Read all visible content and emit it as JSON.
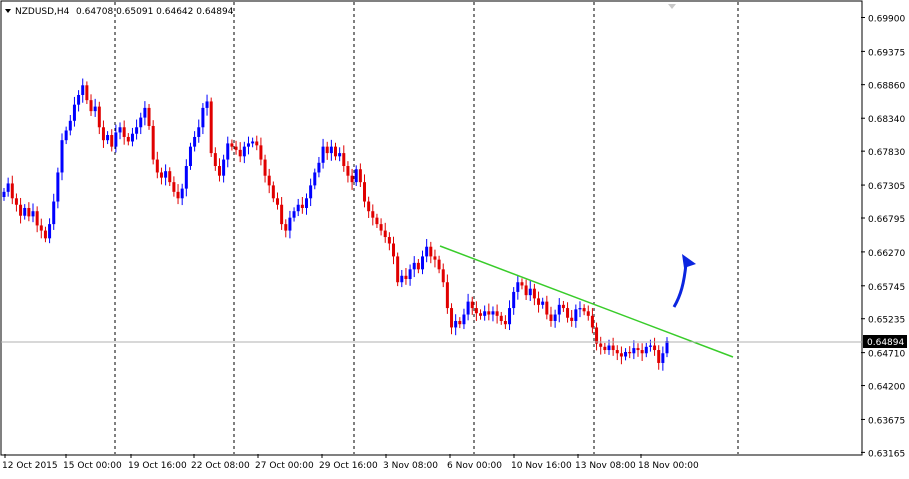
{
  "header": {
    "symbol_tf": "NZDUSD,H4",
    "ohlc": "0.64708 0.65091 0.64642 0.64894"
  },
  "colors": {
    "bull": "#0000ff",
    "bear": "#e00000",
    "trendline": "#39cc2a",
    "arrow": "#0b25e0",
    "grid": "#000000",
    "bg": "#ffffff",
    "price_box_bg": "#000000",
    "price_box_text": "#ffffff"
  },
  "chart_data": {
    "type": "candlestick",
    "title": "NZDUSD,H4",
    "ylim": [
      0.6314,
      0.7014
    ],
    "y_ticks": [
      "0.69900",
      "0.69375",
      "0.68860",
      "0.68340",
      "0.67830",
      "0.67305",
      "0.66795",
      "0.66270",
      "0.65745",
      "0.65235",
      "0.64710",
      "0.64200",
      "0.63675",
      "0.63165"
    ],
    "x_ticks": [
      "12 Oct 2015",
      "15 Oct 00:00",
      "19 Oct 16:00",
      "22 Oct 08:00",
      "27 Oct 00:00",
      "29 Oct 16:00",
      "3 Nov 08:00",
      "6 Nov 00:00",
      "10 Nov 16:00",
      "13 Nov 08:00",
      "18 Nov 00:00"
    ],
    "current_price": "0.64894",
    "grid": "vertical dotted lines at day starts",
    "closes": [
      0.672,
      0.6733,
      0.671,
      0.67,
      0.6683,
      0.6695,
      0.6682,
      0.669,
      0.6668,
      0.666,
      0.6648,
      0.667,
      0.6705,
      0.675,
      0.68,
      0.6815,
      0.683,
      0.6855,
      0.687,
      0.6885,
      0.6862,
      0.6845,
      0.6852,
      0.682,
      0.68,
      0.6808,
      0.679,
      0.6812,
      0.682,
      0.6805,
      0.6798,
      0.681,
      0.682,
      0.6835,
      0.685,
      0.6822,
      0.677,
      0.675,
      0.6742,
      0.6752,
      0.6735,
      0.672,
      0.671,
      0.6725,
      0.676,
      0.679,
      0.6805,
      0.682,
      0.685,
      0.686,
      0.678,
      0.676,
      0.6745,
      0.677,
      0.6795,
      0.679,
      0.6785,
      0.6775,
      0.679,
      0.6795,
      0.6798,
      0.6792,
      0.677,
      0.6745,
      0.673,
      0.671,
      0.67,
      0.667,
      0.666,
      0.668,
      0.669,
      0.67,
      0.6695,
      0.671,
      0.673,
      0.675,
      0.6765,
      0.679,
      0.678,
      0.679,
      0.6775,
      0.678,
      0.676,
      0.6745,
      0.6735,
      0.6755,
      0.6735,
      0.6705,
      0.669,
      0.668,
      0.667,
      0.666,
      0.665,
      0.664,
      0.662,
      0.658,
      0.659,
      0.6585,
      0.66,
      0.661,
      0.66,
      0.662,
      0.6635,
      0.662,
      0.6615,
      0.66,
      0.658,
      0.654,
      0.651,
      0.652,
      0.6515,
      0.653,
      0.655,
      0.654,
      0.6532,
      0.6528,
      0.6535,
      0.653,
      0.6535,
      0.6528,
      0.652,
      0.6515,
      0.654,
      0.6565,
      0.658,
      0.6575,
      0.656,
      0.657,
      0.6555,
      0.6545,
      0.655,
      0.653,
      0.652,
      0.653,
      0.6545,
      0.654,
      0.6525,
      0.652,
      0.6538,
      0.654,
      0.6535,
      0.6528,
      0.651,
      0.6485,
      0.648,
      0.6475,
      0.6482,
      0.6475,
      0.647,
      0.6465,
      0.6472,
      0.647,
      0.6478,
      0.6475,
      0.647,
      0.648,
      0.6482,
      0.6475,
      0.6455,
      0.647,
      0.6489
    ]
  }
}
